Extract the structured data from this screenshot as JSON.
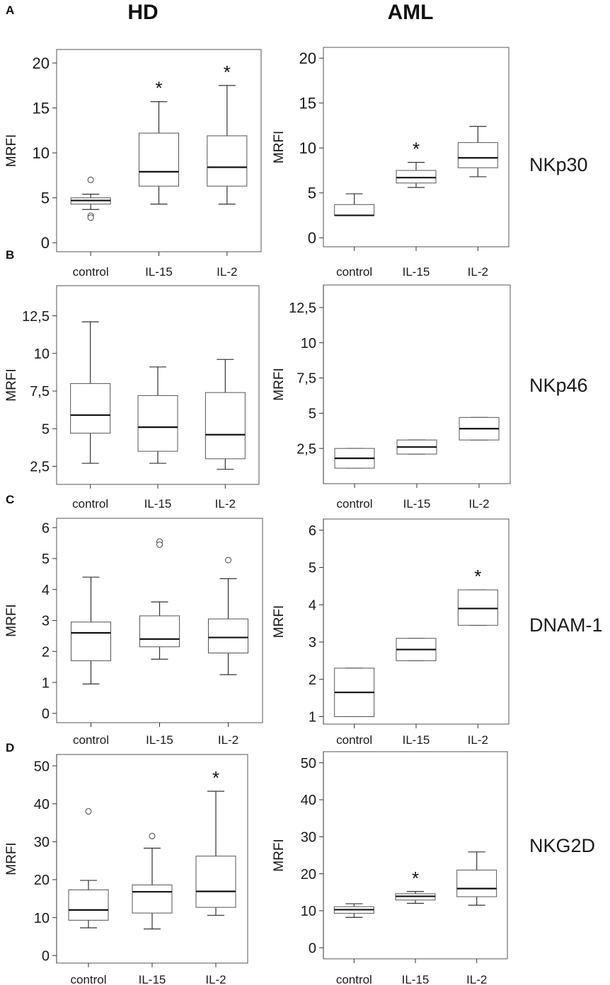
{
  "figure": {
    "columns": [
      "HD",
      "AML"
    ],
    "panel_letters": [
      "A",
      "B",
      "C",
      "D"
    ],
    "markers": [
      "NKp30",
      "NKp46",
      "DNAM-1",
      "NKG2D"
    ]
  },
  "chart_data": [
    {
      "type": "box",
      "panel": "A",
      "group": "HD",
      "marker": "NKp30",
      "ylabel": "MRFI",
      "ylim": [
        -1,
        21.5
      ],
      "yticks": [
        0,
        5,
        10,
        15,
        20
      ],
      "ytick_labels": [
        "0",
        "5",
        "10",
        "15",
        "20"
      ],
      "categories": [
        "control",
        "IL-15",
        "IL-2"
      ],
      "boxes": [
        {
          "min": 3.7,
          "q1": 4.3,
          "median": 4.7,
          "q3": 5.0,
          "max": 5.4,
          "outliers": [
            7.0,
            3.0,
            2.8
          ],
          "significant": false
        },
        {
          "min": 4.3,
          "q1": 6.3,
          "median": 7.9,
          "q3": 12.2,
          "max": 15.7,
          "outliers": [],
          "significant": true
        },
        {
          "min": 4.3,
          "q1": 6.3,
          "median": 8.4,
          "q3": 11.9,
          "max": 17.5,
          "outliers": [],
          "significant": true
        }
      ]
    },
    {
      "type": "box",
      "panel": "A",
      "group": "AML",
      "marker": "NKp30",
      "ylabel": "MRFI",
      "ylim": [
        -1,
        21.2
      ],
      "yticks": [
        0,
        5,
        10,
        15,
        20
      ],
      "ytick_labels": [
        "0",
        "5",
        "10",
        "15",
        "20"
      ],
      "categories": [
        "control",
        "IL-15",
        "IL-2"
      ],
      "boxes": [
        {
          "min": 2.5,
          "q1": 2.5,
          "median": 2.5,
          "q3": 3.7,
          "max": 4.9,
          "outliers": [],
          "significant": false
        },
        {
          "min": 5.6,
          "q1": 6.1,
          "median": 6.7,
          "q3": 7.5,
          "max": 8.4,
          "outliers": [],
          "significant": true
        },
        {
          "min": 6.8,
          "q1": 7.8,
          "median": 8.9,
          "q3": 10.6,
          "max": 12.4,
          "outliers": [],
          "significant": false
        }
      ]
    },
    {
      "type": "box",
      "panel": "B",
      "group": "HD",
      "marker": "NKp46",
      "ylabel": "MRFI",
      "ylim": [
        1.3,
        14.5
      ],
      "yticks": [
        2.5,
        5,
        7.5,
        10,
        12.5
      ],
      "ytick_labels": [
        "2,5",
        "5",
        "7,5",
        "10",
        "12,5"
      ],
      "categories": [
        "control",
        "IL-15",
        "IL-2"
      ],
      "boxes": [
        {
          "min": 2.7,
          "q1": 4.7,
          "median": 5.9,
          "q3": 8.0,
          "max": 12.1,
          "outliers": [],
          "significant": false
        },
        {
          "min": 2.7,
          "q1": 3.5,
          "median": 5.1,
          "q3": 7.2,
          "max": 9.1,
          "outliers": [],
          "significant": false
        },
        {
          "min": 2.3,
          "q1": 3.0,
          "median": 4.6,
          "q3": 7.4,
          "max": 9.6,
          "outliers": [],
          "significant": false
        }
      ]
    },
    {
      "type": "box",
      "panel": "B",
      "group": "AML",
      "marker": "NKp46",
      "ylabel": "MRFI",
      "ylim": [
        0,
        14.1
      ],
      "yticks": [
        2.5,
        5,
        7.5,
        10,
        12.5
      ],
      "ytick_labels": [
        "2,5",
        "5",
        "7,5",
        "10",
        "12,5"
      ],
      "categories": [
        "control",
        "IL-15",
        "IL-2"
      ],
      "boxes": [
        {
          "min": 1.1,
          "q1": 1.1,
          "median": 1.8,
          "q3": 2.5,
          "max": 2.5,
          "outliers": [],
          "significant": false
        },
        {
          "min": 2.1,
          "q1": 2.1,
          "median": 2.6,
          "q3": 3.1,
          "max": 3.1,
          "outliers": [],
          "significant": false
        },
        {
          "min": 3.1,
          "q1": 3.1,
          "median": 3.9,
          "q3": 4.7,
          "max": 4.7,
          "outliers": [],
          "significant": false
        }
      ]
    },
    {
      "type": "box",
      "panel": "C",
      "group": "HD",
      "marker": "DNAM-1",
      "ylabel": "MRFI",
      "ylim": [
        -0.3,
        6.3
      ],
      "yticks": [
        0,
        1,
        2,
        3,
        4,
        5,
        6
      ],
      "ytick_labels": [
        "0",
        "1",
        "2",
        "3",
        "4",
        "5",
        "6"
      ],
      "categories": [
        "control",
        "IL-15",
        "IL-2"
      ],
      "boxes": [
        {
          "min": 0.95,
          "q1": 1.7,
          "median": 2.6,
          "q3": 2.95,
          "max": 4.4,
          "outliers": [],
          "significant": false
        },
        {
          "min": 1.75,
          "q1": 2.15,
          "median": 2.4,
          "q3": 3.15,
          "max": 3.6,
          "outliers": [
            5.55,
            5.45
          ],
          "significant": false
        },
        {
          "min": 1.25,
          "q1": 1.95,
          "median": 2.45,
          "q3": 3.05,
          "max": 4.35,
          "outliers": [
            4.95
          ],
          "significant": false
        }
      ]
    },
    {
      "type": "box",
      "panel": "C",
      "group": "AML",
      "marker": "DNAM-1",
      "ylabel": "MRFI",
      "ylim": [
        0.8,
        6.3
      ],
      "yticks": [
        1,
        2,
        3,
        4,
        5,
        6
      ],
      "ytick_labels": [
        "1",
        "2",
        "3",
        "4",
        "5",
        "6"
      ],
      "categories": [
        "control",
        "IL-15",
        "IL-2"
      ],
      "boxes": [
        {
          "min": 1.0,
          "q1": 1.0,
          "median": 1.65,
          "q3": 2.3,
          "max": 2.3,
          "outliers": [],
          "significant": false
        },
        {
          "min": 2.5,
          "q1": 2.5,
          "median": 2.8,
          "q3": 3.1,
          "max": 3.1,
          "outliers": [],
          "significant": false
        },
        {
          "min": 3.45,
          "q1": 3.45,
          "median": 3.9,
          "q3": 4.4,
          "max": 4.4,
          "outliers": [],
          "significant": true
        }
      ]
    },
    {
      "type": "box",
      "panel": "D",
      "group": "HD",
      "marker": "NKG2D",
      "ylabel": "MRFI",
      "ylim": [
        -2,
        53
      ],
      "yticks": [
        0,
        10,
        20,
        30,
        40,
        50
      ],
      "ytick_labels": [
        "0",
        "10",
        "20",
        "30",
        "40",
        "50"
      ],
      "categories": [
        "control",
        "IL-15",
        "IL-2"
      ],
      "boxes": [
        {
          "min": 7.3,
          "q1": 9.3,
          "median": 12.0,
          "q3": 17.3,
          "max": 19.8,
          "outliers": [
            38.0
          ],
          "significant": false
        },
        {
          "min": 7.0,
          "q1": 11.2,
          "median": 16.8,
          "q3": 18.6,
          "max": 28.3,
          "outliers": [
            31.5
          ],
          "significant": false
        },
        {
          "min": 10.6,
          "q1": 12.7,
          "median": 16.9,
          "q3": 26.2,
          "max": 43.3,
          "outliers": [],
          "significant": true
        }
      ]
    },
    {
      "type": "box",
      "panel": "D",
      "group": "AML",
      "marker": "NKG2D",
      "ylabel": "MRFI",
      "ylim": [
        -3,
        53
      ],
      "yticks": [
        0,
        10,
        20,
        30,
        40,
        50
      ],
      "ytick_labels": [
        "0",
        "10",
        "20",
        "30",
        "40",
        "50"
      ],
      "categories": [
        "control",
        "IL-15",
        "IL-2"
      ],
      "boxes": [
        {
          "min": 8.2,
          "q1": 9.3,
          "median": 10.3,
          "q3": 11.1,
          "max": 11.9,
          "outliers": [],
          "significant": false
        },
        {
          "min": 12.0,
          "q1": 12.9,
          "median": 13.9,
          "q3": 14.6,
          "max": 15.2,
          "outliers": [],
          "significant": true
        },
        {
          "min": 11.5,
          "q1": 13.8,
          "median": 16.0,
          "q3": 21.0,
          "max": 25.9,
          "outliers": [],
          "significant": false
        }
      ]
    }
  ]
}
